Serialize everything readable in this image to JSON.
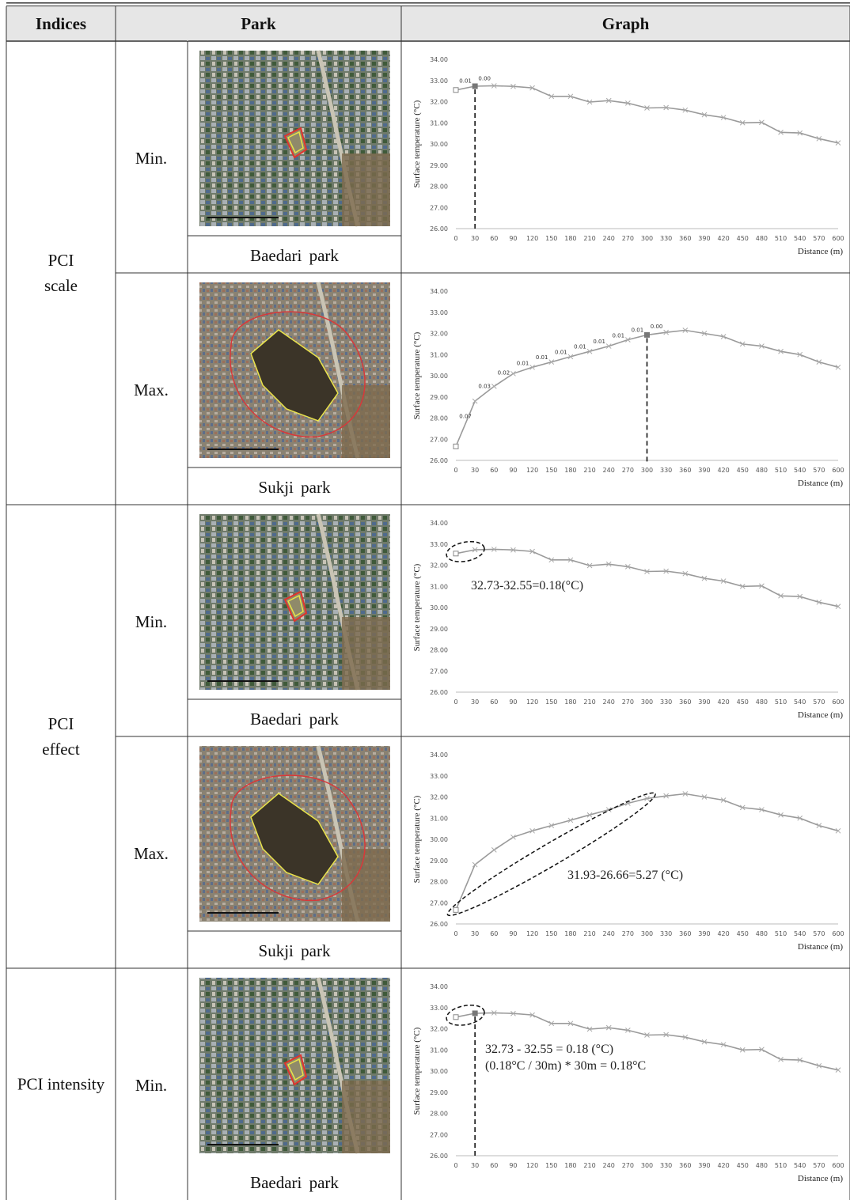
{
  "table": {
    "headers": [
      "Indices",
      "Park",
      "Graph"
    ],
    "groups": [
      {
        "index": [
          "PCI",
          "scale"
        ],
        "rows": [
          {
            "level": "Min.",
            "park": "Baedari park",
            "graph": {
              "type": "line",
              "y_label": "Surface temperature (°C)",
              "x_label": "Distance (m)",
              "x": [
                0,
                30,
                60,
                90,
                120,
                150,
                180,
                210,
                240,
                270,
                300,
                330,
                360,
                390,
                420,
                450,
                480,
                510,
                540,
                570,
                600
              ],
              "series": [
                {
                  "color": "#9a9a9a",
                  "values": [
                    32.55,
                    32.73,
                    32.75,
                    32.72,
                    32.65,
                    32.25,
                    32.25,
                    31.98,
                    32.05,
                    31.93,
                    31.7,
                    31.72,
                    31.6,
                    31.38,
                    31.25,
                    31.0,
                    31.02,
                    30.55,
                    30.52,
                    30.25,
                    30.05
                  ]
                }
              ],
              "segment_labels": [
                "0.01",
                "0.00"
              ],
              "highlight_x": 30,
              "xlim": [
                0,
                600
              ],
              "ylim": [
                26,
                34
              ],
              "xticks": [
                0,
                30,
                60,
                90,
                120,
                150,
                180,
                210,
                240,
                270,
                300,
                330,
                360,
                390,
                420,
                450,
                480,
                510,
                540,
                570,
                600
              ],
              "yticks": [
                {
                  "value": 26,
                  "label": "26.00"
                },
                {
                  "value": 27,
                  "label": "27.00"
                },
                {
                  "value": 28,
                  "label": "28.00"
                },
                {
                  "value": 29,
                  "label": "29.00"
                },
                {
                  "value": 30,
                  "label": "30.00"
                },
                {
                  "value": 31,
                  "label": "31.00"
                },
                {
                  "value": 32,
                  "label": "32.00"
                },
                {
                  "value": 33,
                  "label": "33.00"
                },
                {
                  "value": 34,
                  "label": "34.00"
                }
              ]
            }
          },
          {
            "level": "Max.",
            "park": "Sukji park",
            "graph": {
              "type": "line",
              "y_label": "Surface temperature (°C)",
              "x_label": "Distance (m)",
              "x": [
                0,
                30,
                60,
                90,
                120,
                150,
                180,
                210,
                240,
                270,
                300,
                330,
                360,
                390,
                420,
                450,
                480,
                510,
                540,
                570,
                600
              ],
              "series": [
                {
                  "color": "#9a9a9a",
                  "values": [
                    26.66,
                    28.8,
                    29.5,
                    30.1,
                    30.4,
                    30.65,
                    30.9,
                    31.15,
                    31.4,
                    31.7,
                    31.93,
                    32.05,
                    32.15,
                    32.0,
                    31.85,
                    31.5,
                    31.4,
                    31.15,
                    31.0,
                    30.65,
                    30.4
                  ]
                }
              ],
              "segment_labels": [
                "0.07",
                "0.03",
                "0.02",
                "0.01",
                "0.01",
                "0.01",
                "0.01",
                "0.01",
                "0.01",
                "0.01",
                "0.00"
              ],
              "highlight_x": 300,
              "xlim": [
                0,
                600
              ],
              "ylim": [
                26,
                34
              ],
              "xticks": [
                0,
                30,
                60,
                90,
                120,
                150,
                180,
                210,
                240,
                270,
                300,
                330,
                360,
                390,
                420,
                450,
                480,
                510,
                540,
                570,
                600
              ],
              "yticks": [
                {
                  "value": 26,
                  "label": "26.00"
                },
                {
                  "value": 27,
                  "label": "27.00"
                },
                {
                  "value": 28,
                  "label": "28.00"
                },
                {
                  "value": 29,
                  "label": "29.00"
                },
                {
                  "value": 30,
                  "label": "30.00"
                },
                {
                  "value": 31,
                  "label": "31.00"
                },
                {
                  "value": 32,
                  "label": "32.00"
                },
                {
                  "value": 33,
                  "label": "33.00"
                },
                {
                  "value": 34,
                  "label": "34.00"
                }
              ]
            }
          }
        ]
      },
      {
        "index": [
          "PCI",
          "effect"
        ],
        "rows": [
          {
            "level": "Min.",
            "park": "Baedari park",
            "graph": {
              "type": "line",
              "y_label": "Surface temperature (°C)",
              "x_label": "Distance (m)",
              "x": [
                0,
                30,
                60,
                90,
                120,
                150,
                180,
                210,
                240,
                270,
                300,
                330,
                360,
                390,
                420,
                450,
                480,
                510,
                540,
                570,
                600
              ],
              "series": [
                {
                  "color": "#9a9a9a",
                  "values": [
                    32.55,
                    32.73,
                    32.75,
                    32.72,
                    32.65,
                    32.25,
                    32.25,
                    31.98,
                    32.05,
                    31.93,
                    31.7,
                    31.72,
                    31.6,
                    31.38,
                    31.25,
                    31.0,
                    31.02,
                    30.55,
                    30.52,
                    30.25,
                    30.05
                  ]
                }
              ],
              "notes": [
                "32.73-32.55=0.18(°C)"
              ],
              "xlim": [
                0,
                600
              ],
              "ylim": [
                26,
                34
              ],
              "xticks": [
                0,
                30,
                60,
                90,
                120,
                150,
                180,
                210,
                240,
                270,
                300,
                330,
                360,
                390,
                420,
                450,
                480,
                510,
                540,
                570,
                600
              ],
              "yticks": [
                {
                  "value": 26,
                  "label": "26.00"
                },
                {
                  "value": 27,
                  "label": "27.00"
                },
                {
                  "value": 28,
                  "label": "28.00"
                },
                {
                  "value": 29,
                  "label": "29.00"
                },
                {
                  "value": 30,
                  "label": "30.00"
                },
                {
                  "value": 31,
                  "label": "31.00"
                },
                {
                  "value": 32,
                  "label": "32.00"
                },
                {
                  "value": 33,
                  "label": "33.00"
                },
                {
                  "value": 34,
                  "label": "34.00"
                }
              ]
            }
          },
          {
            "level": "Max.",
            "park": "Sukji park",
            "graph": {
              "type": "line",
              "y_label": "Surface temperature (°C)",
              "x_label": "Distance (m)",
              "x": [
                0,
                30,
                60,
                90,
                120,
                150,
                180,
                210,
                240,
                270,
                300,
                330,
                360,
                390,
                420,
                450,
                480,
                510,
                540,
                570,
                600
              ],
              "series": [
                {
                  "color": "#9a9a9a",
                  "values": [
                    26.66,
                    28.8,
                    29.5,
                    30.1,
                    30.4,
                    30.65,
                    30.9,
                    31.15,
                    31.4,
                    31.7,
                    31.93,
                    32.05,
                    32.15,
                    32.0,
                    31.85,
                    31.5,
                    31.4,
                    31.15,
                    31.0,
                    30.65,
                    30.4
                  ]
                }
              ],
              "notes": [
                "31.93-26.66=5.27 (°C)"
              ],
              "xlim": [
                0,
                600
              ],
              "ylim": [
                26,
                34
              ],
              "xticks": [
                0,
                30,
                60,
                90,
                120,
                150,
                180,
                210,
                240,
                270,
                300,
                330,
                360,
                390,
                420,
                450,
                480,
                510,
                540,
                570,
                600
              ],
              "yticks": [
                {
                  "value": 26,
                  "label": "26.00"
                },
                {
                  "value": 27,
                  "label": "27.00"
                },
                {
                  "value": 28,
                  "label": "28.00"
                },
                {
                  "value": 29,
                  "label": "29.00"
                },
                {
                  "value": 30,
                  "label": "30.00"
                },
                {
                  "value": 31,
                  "label": "31.00"
                },
                {
                  "value": 32,
                  "label": "32.00"
                },
                {
                  "value": 33,
                  "label": "33.00"
                },
                {
                  "value": 34,
                  "label": "34.00"
                }
              ]
            }
          }
        ]
      },
      {
        "index": [
          "PCI intensity"
        ],
        "rows": [
          {
            "level": "Min.",
            "park": "Baedari park",
            "graph": {
              "type": "line",
              "y_label": "Surface temperature (°C)",
              "x_label": "Distance (m)",
              "x": [
                0,
                30,
                60,
                90,
                120,
                150,
                180,
                210,
                240,
                270,
                300,
                330,
                360,
                390,
                420,
                450,
                480,
                510,
                540,
                570,
                600
              ],
              "series": [
                {
                  "color": "#9a9a9a",
                  "values": [
                    32.55,
                    32.73,
                    32.75,
                    32.72,
                    32.65,
                    32.25,
                    32.25,
                    31.98,
                    32.05,
                    31.93,
                    31.7,
                    31.72,
                    31.6,
                    31.38,
                    31.25,
                    31.0,
                    31.02,
                    30.55,
                    30.52,
                    30.25,
                    30.05
                  ]
                }
              ],
              "notes": [
                "32.73 - 32.55 = 0.18 (°C)",
                "(0.18°C / 30m) * 30m = 0.18°C"
              ],
              "highlight_x": 30,
              "xlim": [
                0,
                600
              ],
              "ylim": [
                26,
                34
              ],
              "xticks": [
                0,
                30,
                60,
                90,
                120,
                150,
                180,
                210,
                240,
                270,
                300,
                330,
                360,
                390,
                420,
                450,
                480,
                510,
                540,
                570,
                600
              ],
              "yticks": [
                {
                  "value": 26,
                  "label": "26.00"
                },
                {
                  "value": 27,
                  "label": "27.00"
                },
                {
                  "value": 28,
                  "label": "28.00"
                },
                {
                  "value": 29,
                  "label": "29.00"
                },
                {
                  "value": 30,
                  "label": "30.00"
                },
                {
                  "value": 31,
                  "label": "31.00"
                },
                {
                  "value": 32,
                  "label": "32.00"
                },
                {
                  "value": 33,
                  "label": "33.00"
                },
                {
                  "value": 34,
                  "label": "34.00"
                }
              ]
            }
          }
        ]
      }
    ]
  }
}
